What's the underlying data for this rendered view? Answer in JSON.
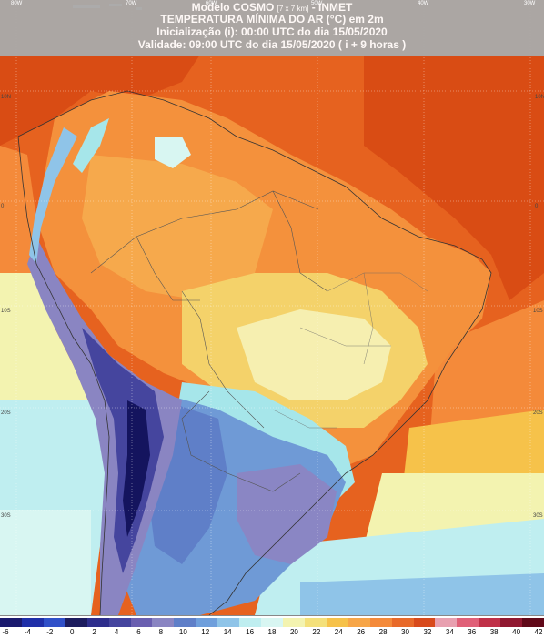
{
  "header": {
    "model_name": "Modelo COSMO",
    "resolution": "[7 x 7 km]",
    "institute": "- INMET",
    "title": "TEMPERATURA MÍNIMA DO AR (°C) em 2m",
    "init_line": "Inicialização (i): 00:00 UTC do dia 15/05/2020",
    "valid_line": "Validade: 09:00 UTC do dia 15/05/2020 ( i + 9 horas )"
  },
  "graticule": {
    "longitudes": [
      "80W",
      "70W",
      "60W",
      "50W",
      "40W",
      "30W"
    ],
    "latitudes": [
      "10N",
      "0",
      "10S",
      "20S",
      "30S"
    ]
  },
  "legend": {
    "unit": "°C",
    "ticks": [
      "-6",
      "-4",
      "-2",
      "0",
      "2",
      "4",
      "6",
      "8",
      "10",
      "12",
      "14",
      "16",
      "18",
      "20",
      "22",
      "24",
      "26",
      "28",
      "30",
      "32",
      "34",
      "36",
      "38",
      "40",
      "42"
    ],
    "colors": [
      "#1a1a6e",
      "#1f2fa8",
      "#3050c8",
      "#1c1c5e",
      "#2e2e8c",
      "#45459e",
      "#6a5fb0",
      "#8a85c2",
      "#5f7fc8",
      "#6f9fdc",
      "#8fc4e8",
      "#bfeef0",
      "#d8f6f2",
      "#f3f3b0",
      "#f4e07a",
      "#f6c24a",
      "#f7a648",
      "#f48a3a",
      "#e86a2a",
      "#d84a1c",
      "#e8a0b0",
      "#e06078",
      "#c03048",
      "#901830",
      "#600818"
    ]
  },
  "colors": {
    "header_bg": "#a9a9a9",
    "ocean_warm": "#e6621f",
    "ocean_hot": "#d94c14",
    "land_orange": "#f4913c",
    "land_light_orange": "#f6a94c",
    "yellow": "#f4d26a",
    "cream": "#f6efb0",
    "pale_cyan": "#c8f0ec",
    "cyan": "#a6e6ea",
    "blue": "#6f9ad6",
    "purple": "#8a86c4",
    "dark_purple": "#3a2f8a",
    "navy": "#14145e"
  }
}
